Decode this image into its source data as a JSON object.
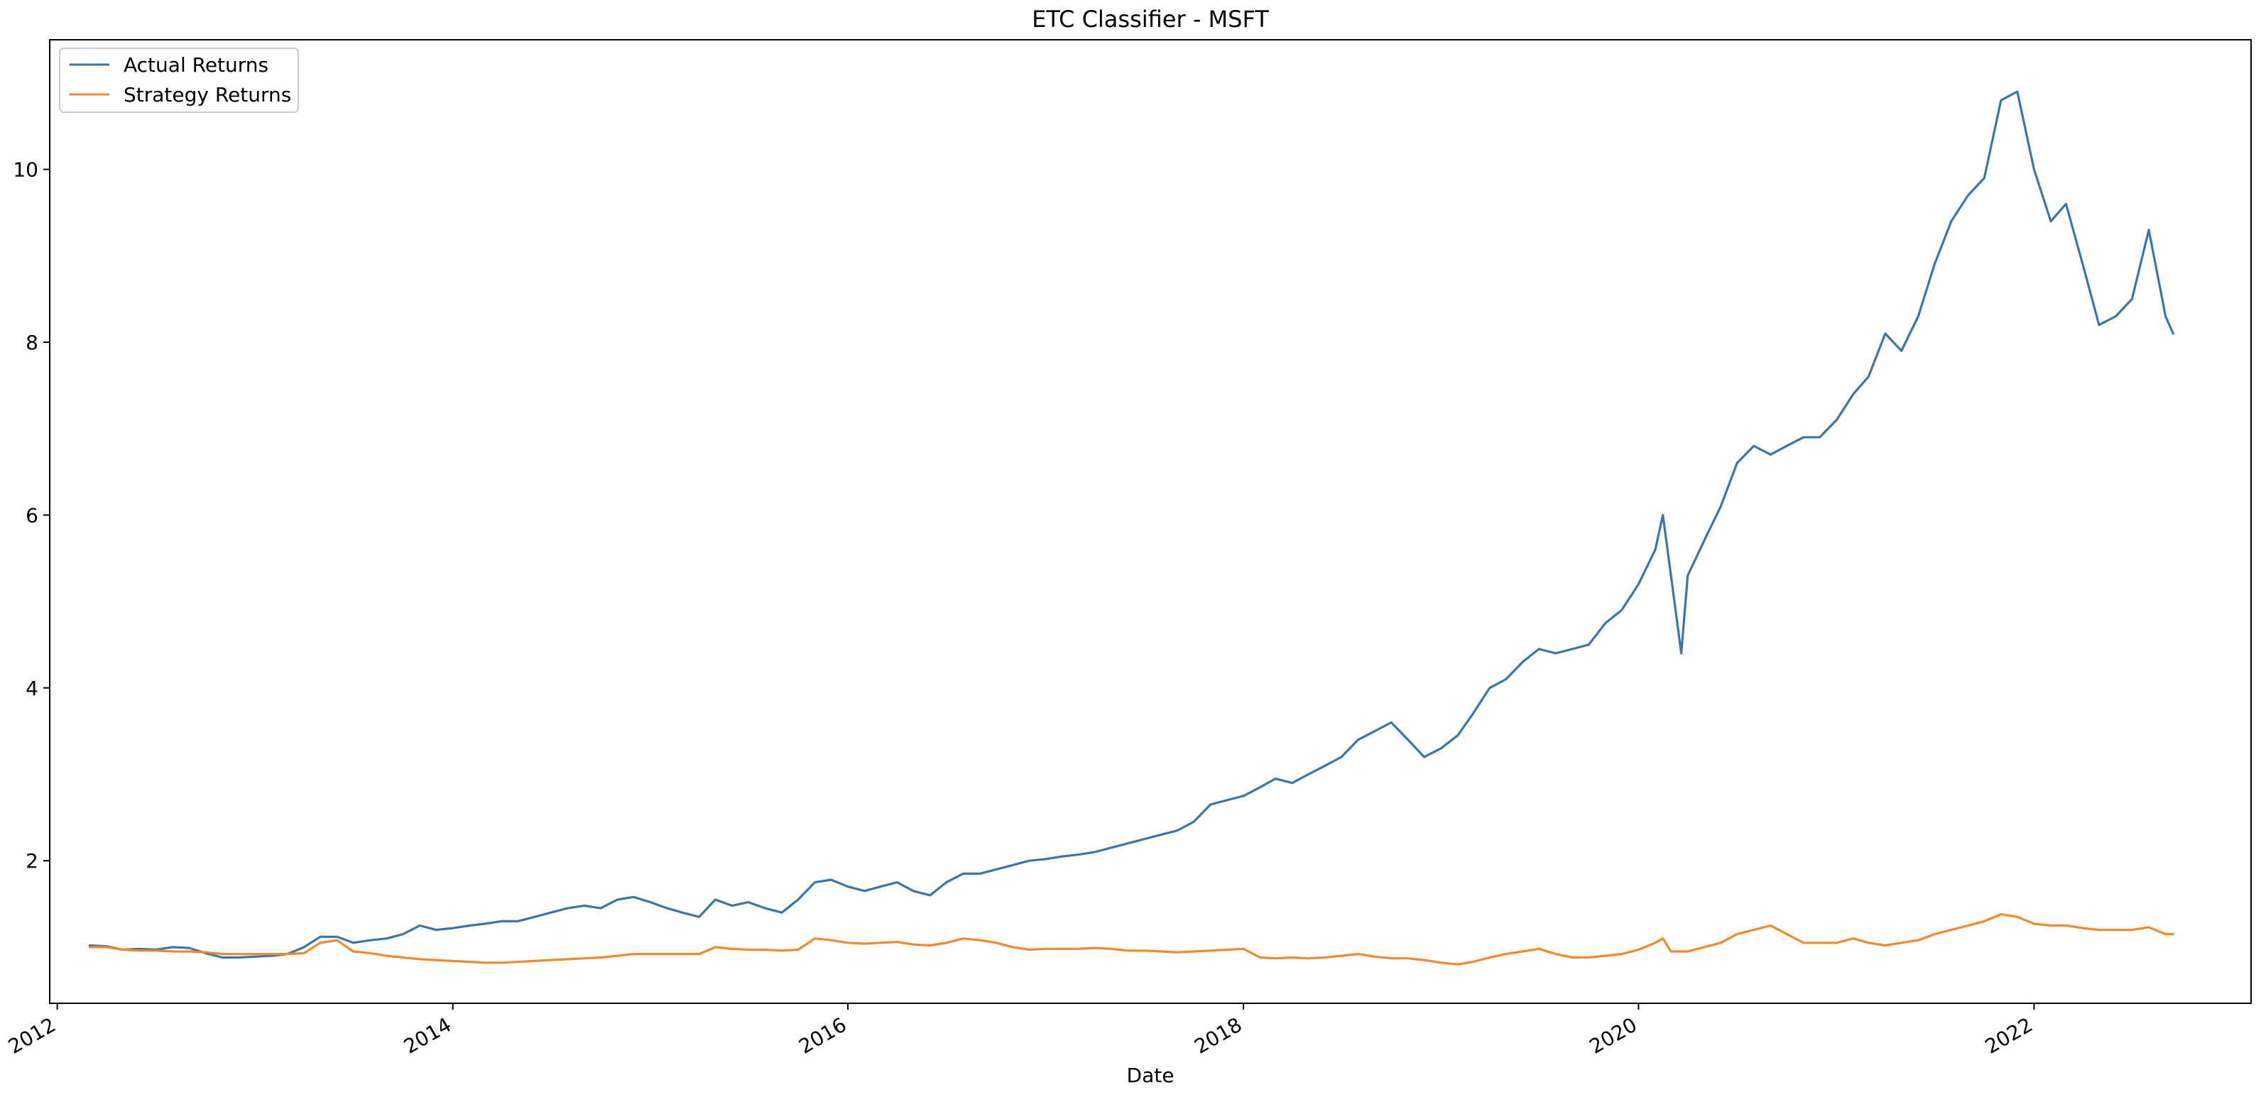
{
  "chart_data": {
    "type": "line",
    "title": "ETC Classifier - MSFT",
    "xlabel": "Date",
    "ylabel": "",
    "xlim": [
      "2011-12-18",
      "2023-02-06"
    ],
    "ylim": [
      0.35,
      11.5
    ],
    "x_ticks": [
      {
        "label": "2012",
        "date": "2012-01-01"
      },
      {
        "label": "2014",
        "date": "2014-01-01"
      },
      {
        "label": "2016",
        "date": "2016-01-01"
      },
      {
        "label": "2018",
        "date": "2018-01-01"
      },
      {
        "label": "2020",
        "date": "2020-01-01"
      },
      {
        "label": "2022",
        "date": "2022-01-01"
      }
    ],
    "y_ticks": [
      2,
      4,
      6,
      8,
      10
    ],
    "grid": false,
    "legend_position": "top-left",
    "series": [
      {
        "name": "Actual Returns",
        "color": "#3a75af",
        "points": [
          [
            "2012-03-01",
            1.02
          ],
          [
            "2012-04-01",
            1.01
          ],
          [
            "2012-05-01",
            0.97
          ],
          [
            "2012-06-01",
            0.98
          ],
          [
            "2012-07-01",
            0.97
          ],
          [
            "2012-08-01",
            1.0
          ],
          [
            "2012-09-01",
            0.99
          ],
          [
            "2012-10-01",
            0.93
          ],
          [
            "2012-11-01",
            0.88
          ],
          [
            "2012-12-01",
            0.88
          ],
          [
            "2013-01-01",
            0.89
          ],
          [
            "2013-02-01",
            0.9
          ],
          [
            "2013-03-01",
            0.92
          ],
          [
            "2013-04-01",
            1.0
          ],
          [
            "2013-05-01",
            1.12
          ],
          [
            "2013-06-01",
            1.12
          ],
          [
            "2013-07-01",
            1.05
          ],
          [
            "2013-08-01",
            1.08
          ],
          [
            "2013-09-01",
            1.1
          ],
          [
            "2013-10-01",
            1.15
          ],
          [
            "2013-11-01",
            1.25
          ],
          [
            "2013-12-01",
            1.2
          ],
          [
            "2014-01-01",
            1.22
          ],
          [
            "2014-02-01",
            1.25
          ],
          [
            "2014-03-01",
            1.27
          ],
          [
            "2014-04-01",
            1.3
          ],
          [
            "2014-05-01",
            1.3
          ],
          [
            "2014-06-01",
            1.35
          ],
          [
            "2014-07-01",
            1.4
          ],
          [
            "2014-08-01",
            1.45
          ],
          [
            "2014-09-01",
            1.48
          ],
          [
            "2014-10-01",
            1.45
          ],
          [
            "2014-11-01",
            1.55
          ],
          [
            "2014-12-01",
            1.58
          ],
          [
            "2015-01-01",
            1.52
          ],
          [
            "2015-02-01",
            1.45
          ],
          [
            "2015-03-01",
            1.4
          ],
          [
            "2015-04-01",
            1.35
          ],
          [
            "2015-05-01",
            1.55
          ],
          [
            "2015-06-01",
            1.48
          ],
          [
            "2015-07-01",
            1.52
          ],
          [
            "2015-08-01",
            1.45
          ],
          [
            "2015-09-01",
            1.4
          ],
          [
            "2015-10-01",
            1.55
          ],
          [
            "2015-11-01",
            1.75
          ],
          [
            "2015-12-01",
            1.78
          ],
          [
            "2016-01-01",
            1.7
          ],
          [
            "2016-02-01",
            1.65
          ],
          [
            "2016-03-01",
            1.7
          ],
          [
            "2016-04-01",
            1.75
          ],
          [
            "2016-05-01",
            1.65
          ],
          [
            "2016-06-01",
            1.6
          ],
          [
            "2016-07-01",
            1.75
          ],
          [
            "2016-08-01",
            1.85
          ],
          [
            "2016-09-01",
            1.85
          ],
          [
            "2016-10-01",
            1.9
          ],
          [
            "2016-11-01",
            1.95
          ],
          [
            "2016-12-01",
            2.0
          ],
          [
            "2017-01-01",
            2.02
          ],
          [
            "2017-02-01",
            2.05
          ],
          [
            "2017-03-01",
            2.07
          ],
          [
            "2017-04-01",
            2.1
          ],
          [
            "2017-05-01",
            2.15
          ],
          [
            "2017-06-01",
            2.2
          ],
          [
            "2017-07-01",
            2.25
          ],
          [
            "2017-08-01",
            2.3
          ],
          [
            "2017-09-01",
            2.35
          ],
          [
            "2017-10-01",
            2.45
          ],
          [
            "2017-11-01",
            2.65
          ],
          [
            "2017-12-01",
            2.7
          ],
          [
            "2018-01-01",
            2.75
          ],
          [
            "2018-02-01",
            2.85
          ],
          [
            "2018-03-01",
            2.95
          ],
          [
            "2018-04-01",
            2.9
          ],
          [
            "2018-05-01",
            3.0
          ],
          [
            "2018-06-01",
            3.1
          ],
          [
            "2018-07-01",
            3.2
          ],
          [
            "2018-08-01",
            3.4
          ],
          [
            "2018-09-01",
            3.5
          ],
          [
            "2018-10-01",
            3.6
          ],
          [
            "2018-11-01",
            3.4
          ],
          [
            "2018-12-01",
            3.2
          ],
          [
            "2019-01-01",
            3.3
          ],
          [
            "2019-02-01",
            3.45
          ],
          [
            "2019-03-01",
            3.7
          ],
          [
            "2019-04-01",
            4.0
          ],
          [
            "2019-05-01",
            4.1
          ],
          [
            "2019-06-01",
            4.3
          ],
          [
            "2019-07-01",
            4.45
          ],
          [
            "2019-08-01",
            4.4
          ],
          [
            "2019-09-01",
            4.45
          ],
          [
            "2019-10-01",
            4.5
          ],
          [
            "2019-11-01",
            4.75
          ],
          [
            "2019-12-01",
            4.9
          ],
          [
            "2020-01-01",
            5.2
          ],
          [
            "2020-02-01",
            5.6
          ],
          [
            "2020-02-15",
            6.0
          ],
          [
            "2020-03-01",
            5.3
          ],
          [
            "2020-03-20",
            4.4
          ],
          [
            "2020-04-01",
            5.3
          ],
          [
            "2020-05-01",
            5.7
          ],
          [
            "2020-06-01",
            6.1
          ],
          [
            "2020-07-01",
            6.6
          ],
          [
            "2020-08-01",
            6.8
          ],
          [
            "2020-09-01",
            6.7
          ],
          [
            "2020-10-01",
            6.8
          ],
          [
            "2020-11-01",
            6.9
          ],
          [
            "2020-12-01",
            6.9
          ],
          [
            "2021-01-01",
            7.1
          ],
          [
            "2021-02-01",
            7.4
          ],
          [
            "2021-03-01",
            7.6
          ],
          [
            "2021-04-01",
            8.1
          ],
          [
            "2021-05-01",
            7.9
          ],
          [
            "2021-06-01",
            8.3
          ],
          [
            "2021-07-01",
            8.9
          ],
          [
            "2021-08-01",
            9.4
          ],
          [
            "2021-09-01",
            9.7
          ],
          [
            "2021-10-01",
            9.9
          ],
          [
            "2021-11-01",
            10.8
          ],
          [
            "2021-12-01",
            10.9
          ],
          [
            "2022-01-01",
            10.0
          ],
          [
            "2022-02-01",
            9.4
          ],
          [
            "2022-03-01",
            9.6
          ],
          [
            "2022-04-01",
            8.9
          ],
          [
            "2022-05-01",
            8.2
          ],
          [
            "2022-06-01",
            8.3
          ],
          [
            "2022-07-01",
            8.5
          ],
          [
            "2022-08-01",
            9.3
          ],
          [
            "2022-09-01",
            8.3
          ],
          [
            "2022-09-15",
            8.1
          ]
        ]
      },
      {
        "name": "Strategy Returns",
        "color": "#f08a2a",
        "points": [
          [
            "2012-03-01",
            1.0
          ],
          [
            "2012-04-01",
            1.0
          ],
          [
            "2012-05-01",
            0.97
          ],
          [
            "2012-06-01",
            0.96
          ],
          [
            "2012-07-01",
            0.96
          ],
          [
            "2012-08-01",
            0.95
          ],
          [
            "2012-09-01",
            0.95
          ],
          [
            "2012-10-01",
            0.94
          ],
          [
            "2012-11-01",
            0.92
          ],
          [
            "2012-12-01",
            0.92
          ],
          [
            "2013-01-01",
            0.92
          ],
          [
            "2013-02-01",
            0.92
          ],
          [
            "2013-03-01",
            0.92
          ],
          [
            "2013-04-01",
            0.93
          ],
          [
            "2013-05-01",
            1.05
          ],
          [
            "2013-06-01",
            1.08
          ],
          [
            "2013-07-01",
            0.95
          ],
          [
            "2013-08-01",
            0.93
          ],
          [
            "2013-09-01",
            0.9
          ],
          [
            "2013-10-01",
            0.88
          ],
          [
            "2013-11-01",
            0.86
          ],
          [
            "2013-12-01",
            0.85
          ],
          [
            "2014-01-01",
            0.84
          ],
          [
            "2014-02-01",
            0.83
          ],
          [
            "2014-03-01",
            0.82
          ],
          [
            "2014-04-01",
            0.82
          ],
          [
            "2014-05-01",
            0.83
          ],
          [
            "2014-06-01",
            0.84
          ],
          [
            "2014-07-01",
            0.85
          ],
          [
            "2014-08-01",
            0.86
          ],
          [
            "2014-09-01",
            0.87
          ],
          [
            "2014-10-01",
            0.88
          ],
          [
            "2014-11-01",
            0.9
          ],
          [
            "2014-12-01",
            0.92
          ],
          [
            "2015-01-01",
            0.92
          ],
          [
            "2015-02-01",
            0.92
          ],
          [
            "2015-03-01",
            0.92
          ],
          [
            "2015-04-01",
            0.92
          ],
          [
            "2015-05-01",
            1.0
          ],
          [
            "2015-06-01",
            0.98
          ],
          [
            "2015-07-01",
            0.97
          ],
          [
            "2015-08-01",
            0.97
          ],
          [
            "2015-09-01",
            0.96
          ],
          [
            "2015-10-01",
            0.97
          ],
          [
            "2015-11-01",
            1.1
          ],
          [
            "2015-12-01",
            1.08
          ],
          [
            "2016-01-01",
            1.05
          ],
          [
            "2016-02-01",
            1.04
          ],
          [
            "2016-03-01",
            1.05
          ],
          [
            "2016-04-01",
            1.06
          ],
          [
            "2016-05-01",
            1.03
          ],
          [
            "2016-06-01",
            1.02
          ],
          [
            "2016-07-01",
            1.05
          ],
          [
            "2016-08-01",
            1.1
          ],
          [
            "2016-09-01",
            1.08
          ],
          [
            "2016-10-01",
            1.05
          ],
          [
            "2016-11-01",
            1.0
          ],
          [
            "2016-12-01",
            0.97
          ],
          [
            "2017-01-01",
            0.98
          ],
          [
            "2017-02-01",
            0.98
          ],
          [
            "2017-03-01",
            0.98
          ],
          [
            "2017-04-01",
            0.99
          ],
          [
            "2017-05-01",
            0.98
          ],
          [
            "2017-06-01",
            0.96
          ],
          [
            "2017-07-01",
            0.96
          ],
          [
            "2017-08-01",
            0.95
          ],
          [
            "2017-09-01",
            0.94
          ],
          [
            "2017-10-01",
            0.95
          ],
          [
            "2017-11-01",
            0.96
          ],
          [
            "2017-12-01",
            0.97
          ],
          [
            "2018-01-01",
            0.98
          ],
          [
            "2018-02-01",
            0.88
          ],
          [
            "2018-03-01",
            0.87
          ],
          [
            "2018-04-01",
            0.88
          ],
          [
            "2018-05-01",
            0.87
          ],
          [
            "2018-06-01",
            0.88
          ],
          [
            "2018-07-01",
            0.9
          ],
          [
            "2018-08-01",
            0.92
          ],
          [
            "2018-09-01",
            0.89
          ],
          [
            "2018-10-01",
            0.87
          ],
          [
            "2018-11-01",
            0.87
          ],
          [
            "2018-12-01",
            0.85
          ],
          [
            "2019-01-01",
            0.82
          ],
          [
            "2019-02-01",
            0.8
          ],
          [
            "2019-03-01",
            0.83
          ],
          [
            "2019-04-01",
            0.88
          ],
          [
            "2019-05-01",
            0.92
          ],
          [
            "2019-06-01",
            0.95
          ],
          [
            "2019-07-01",
            0.98
          ],
          [
            "2019-08-01",
            0.92
          ],
          [
            "2019-09-01",
            0.88
          ],
          [
            "2019-10-01",
            0.88
          ],
          [
            "2019-11-01",
            0.9
          ],
          [
            "2019-12-01",
            0.92
          ],
          [
            "2020-01-01",
            0.97
          ],
          [
            "2020-02-01",
            1.05
          ],
          [
            "2020-02-15",
            1.1
          ],
          [
            "2020-03-01",
            0.95
          ],
          [
            "2020-04-01",
            0.95
          ],
          [
            "2020-05-01",
            1.0
          ],
          [
            "2020-06-01",
            1.05
          ],
          [
            "2020-07-01",
            1.15
          ],
          [
            "2020-08-01",
            1.2
          ],
          [
            "2020-09-01",
            1.25
          ],
          [
            "2020-10-01",
            1.15
          ],
          [
            "2020-11-01",
            1.05
          ],
          [
            "2020-12-01",
            1.05
          ],
          [
            "2021-01-01",
            1.05
          ],
          [
            "2021-02-01",
            1.1
          ],
          [
            "2021-03-01",
            1.05
          ],
          [
            "2021-04-01",
            1.02
          ],
          [
            "2021-05-01",
            1.05
          ],
          [
            "2021-06-01",
            1.08
          ],
          [
            "2021-07-01",
            1.15
          ],
          [
            "2021-08-01",
            1.2
          ],
          [
            "2021-09-01",
            1.25
          ],
          [
            "2021-10-01",
            1.3
          ],
          [
            "2021-11-01",
            1.38
          ],
          [
            "2021-12-01",
            1.35
          ],
          [
            "2022-01-01",
            1.27
          ],
          [
            "2022-02-01",
            1.25
          ],
          [
            "2022-03-01",
            1.25
          ],
          [
            "2022-04-01",
            1.22
          ],
          [
            "2022-05-01",
            1.2
          ],
          [
            "2022-06-01",
            1.2
          ],
          [
            "2022-07-01",
            1.2
          ],
          [
            "2022-08-01",
            1.23
          ],
          [
            "2022-09-01",
            1.15
          ],
          [
            "2022-09-15",
            1.15
          ]
        ]
      }
    ]
  }
}
